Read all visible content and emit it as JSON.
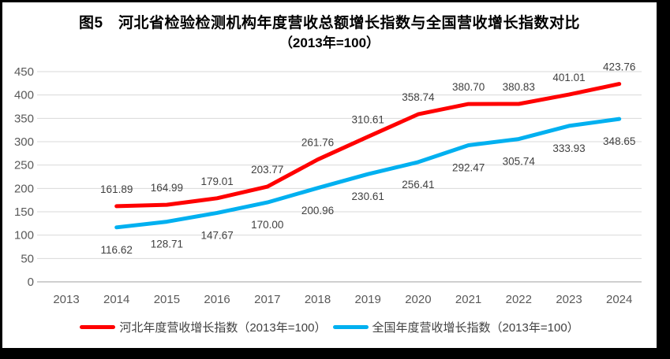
{
  "chart_data": {
    "type": "line",
    "title": "图5　河北省检验检测机构年度营收总额增长指数与全国营收增长指数对比",
    "subtitle": "（2013年=100）",
    "categories": [
      "2013",
      "2014",
      "2015",
      "2016",
      "2017",
      "2018",
      "2019",
      "2020",
      "2021",
      "2022",
      "2023",
      "2024"
    ],
    "y_axis": {
      "min": 0,
      "max": 450,
      "step": 50,
      "tick_labels": [
        "0",
        "50",
        "100",
        "150",
        "200",
        "250",
        "300",
        "350",
        "400",
        "450"
      ]
    },
    "grid": true,
    "legend_position": "bottom",
    "series": [
      {
        "id": "hebei",
        "name": "河北年度营收增长指数（2013年=100）",
        "color": "#FF0000",
        "label_position": "above",
        "values": [
          null,
          161.89,
          164.99,
          179.01,
          203.77,
          261.76,
          310.61,
          358.74,
          380.7,
          380.83,
          401.01,
          423.76
        ],
        "labels": [
          "",
          "161.89",
          "164.99",
          "179.01",
          "203.77",
          "261.76",
          "310.61",
          "358.74",
          "380.70",
          "380.83",
          "401.01",
          "423.76"
        ]
      },
      {
        "id": "national",
        "name": "全国年度营收增长指数（2013年=100）",
        "color": "#00B0F0",
        "label_position": "below",
        "values": [
          null,
          116.62,
          128.71,
          147.67,
          170.0,
          200.96,
          230.61,
          256.41,
          292.47,
          305.74,
          333.93,
          348.65
        ],
        "labels": [
          "",
          "116.62",
          "128.71",
          "147.67",
          "170.00",
          "200.96",
          "230.61",
          "256.41",
          "292.47",
          "305.74",
          "333.93",
          "348.65"
        ]
      }
    ],
    "colors": {
      "background": "#FFFFFF",
      "frame": "#000000",
      "gridline": "#D9D9D9",
      "axis_line": "#BFBFBF",
      "tick_label": "#595959",
      "data_label": "#404040",
      "title": "#000000",
      "legend_label": "#404040"
    }
  }
}
